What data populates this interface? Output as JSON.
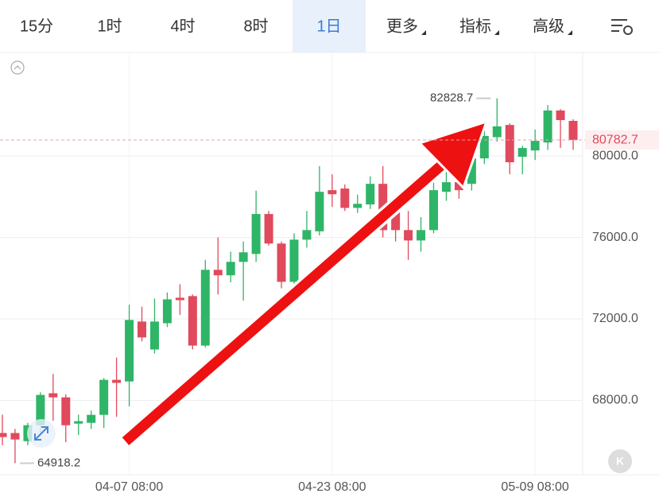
{
  "toolbar": {
    "tabs": [
      "15分",
      "1时",
      "4时",
      "8时",
      "1日",
      "更多",
      "指标",
      "高级"
    ],
    "active": 4
  },
  "chart_data": {
    "type": "candlestick",
    "categories": [
      null,
      null,
      null,
      null,
      null,
      null,
      null,
      null,
      null,
      null,
      "04-07 08:00",
      null,
      null,
      null,
      null,
      null,
      null,
      null,
      null,
      null,
      null,
      null,
      null,
      null,
      null,
      null,
      "04-23 08:00",
      null,
      null,
      null,
      null,
      null,
      null,
      null,
      null,
      null,
      null,
      null,
      null,
      null,
      null,
      null,
      "05-09 08:00",
      null,
      null,
      null
    ],
    "open": [
      66400,
      66400,
      66000,
      66780,
      68350,
      68150,
      66860,
      66900,
      67290,
      69010,
      68930,
      71870,
      70500,
      71790,
      73040,
      73120,
      70690,
      74410,
      74140,
      74800,
      75190,
      77150,
      75700,
      73820,
      75890,
      76300,
      78320,
      78400,
      77450,
      77620,
      78630,
      77540,
      76360,
      75850,
      76360,
      78240,
      78710,
      78630,
      79880,
      80920,
      81520,
      79960,
      80270,
      80660,
      82230,
      81720
    ],
    "high": [
      67300,
      66600,
      66900,
      68400,
      69300,
      68300,
      67300,
      67500,
      69100,
      70100,
      72700,
      72600,
      73000,
      73300,
      73700,
      73200,
      74900,
      76000,
      75300,
      75800,
      78300,
      77300,
      75800,
      76200,
      77300,
      79500,
      79100,
      78600,
      78100,
      79000,
      79500,
      77700,
      77300,
      77000,
      79000,
      79400,
      79300,
      80200,
      81500,
      82828.7,
      81600,
      80500,
      81300,
      82500,
      82300,
      81800
    ],
    "low": [
      65800,
      64918.2,
      65800,
      66300,
      67000,
      65950,
      66300,
      66600,
      66650,
      67200,
      67700,
      70900,
      70300,
      71600,
      72200,
      70500,
      70600,
      73200,
      73800,
      72900,
      74800,
      75600,
      73500,
      73600,
      75500,
      76100,
      77500,
      77300,
      77200,
      77400,
      76000,
      75800,
      74900,
      75300,
      76200,
      77800,
      77900,
      78300,
      79600,
      80700,
      79100,
      79100,
      79800,
      80300,
      80400,
      80300
    ],
    "close": [
      66200,
      66080,
      66780,
      68270,
      68150,
      66780,
      66980,
      67290,
      69010,
      68860,
      71950,
      71090,
      71870,
      72960,
      72920,
      70690,
      74410,
      74140,
      74800,
      75270,
      77150,
      75700,
      73820,
      75890,
      76360,
      78240,
      78120,
      77450,
      77650,
      78630,
      76360,
      76360,
      75850,
      76360,
      78320,
      78710,
      78320,
      79880,
      80980,
      81450,
      79690,
      80390,
      80740,
      82230,
      81760,
      80782.7
    ],
    "up_color": "#2fb567",
    "down_color": "#e04a5c",
    "ylim": [
      64350,
      85000
    ],
    "yticks": [
      {
        "value": 68000,
        "label": "68000.0"
      },
      {
        "value": 72000,
        "label": "72000.0"
      },
      {
        "value": 76000,
        "label": "76000.0"
      },
      {
        "value": 80000,
        "label": "80000.0"
      }
    ],
    "grid": true
  }
}
